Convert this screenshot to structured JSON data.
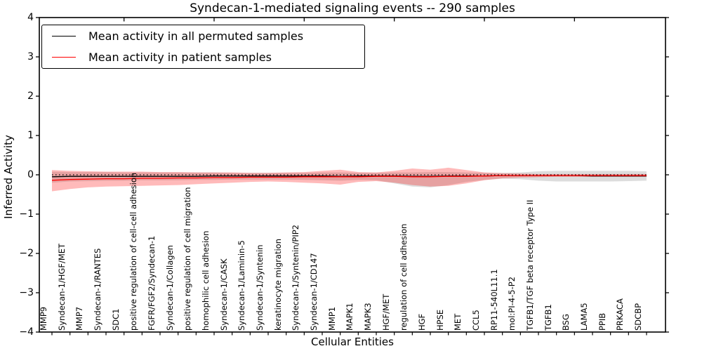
{
  "title": "Syndecan-1-mediated signaling events -- 290 samples",
  "axes": {
    "ylabel": "Inferred Activity",
    "xlabel": "Cellular Entities",
    "yticks": [
      4,
      3,
      2,
      1,
      0,
      -1,
      -2,
      -3,
      -4
    ],
    "top_major_tick_category_indices": [
      4,
      9,
      14,
      19,
      24,
      29
    ]
  },
  "legend": {
    "entries": [
      {
        "label": "Mean activity in all permuted samples",
        "color": "#000000"
      },
      {
        "label": "Mean activity in patient samples",
        "color": "#ff0000"
      }
    ],
    "position": "upper-left"
  },
  "colors": {
    "permuted_line": "#000000",
    "patient_line": "#ff0000",
    "permuted_band": "#787878",
    "permuted_band_alpha": 0.25,
    "patient_band": "#ff0000",
    "patient_band_alpha": 0.27,
    "zero_line": "#000000"
  },
  "chart_data": {
    "type": "line",
    "title": "Syndecan-1-mediated signaling events -- 290 samples",
    "xlabel": "Cellular Entities",
    "ylabel": "Inferred Activity",
    "ylim": [
      -4,
      4
    ],
    "grid": false,
    "legend_position": "upper left",
    "x_tick_rotation": 90,
    "zero_line": {
      "y": 0,
      "style": "dotted"
    },
    "categories": [
      "MMP9",
      "Syndecan-1/HGF/MET",
      "MMP7",
      "Syndecan-1/RANTES",
      "SDC1",
      "positive regulation of cell-cell adhesion",
      "FGFR/FGF2/Syndecan-1",
      "Syndecan-1/Collagen",
      "positive regulation of cell migration",
      "homophilic cell adhesion",
      "Syndecan-1/CASK",
      "Syndecan-1/Laminin-5",
      "Syndecan-1/Syntenin",
      "keratinocyte migration",
      "Syndecan-1/Syntenin/PIP2",
      "Syndecan-1/CD147",
      "MMP1",
      "MAPK1",
      "MAPK3",
      "HGF/MET",
      "regulation of cell adhesion",
      "HGF",
      "HPSE",
      "MET",
      "CCL5",
      "RP11-540L11.1",
      "mol:PI-4-5-P2",
      "TGFB1/TGF beta receptor Type II",
      "TGFB1",
      "BSG",
      "LAMA5",
      "PPIB",
      "PRKACA",
      "SDCBP"
    ],
    "series": [
      {
        "name": "Mean activity in all permuted samples",
        "color": "#000000",
        "values": [
          -0.05,
          -0.04,
          -0.04,
          -0.04,
          -0.04,
          -0.04,
          -0.04,
          -0.04,
          -0.04,
          -0.03,
          -0.03,
          -0.03,
          -0.03,
          -0.03,
          -0.03,
          -0.03,
          -0.04,
          -0.03,
          -0.03,
          -0.03,
          -0.04,
          -0.04,
          -0.03,
          -0.03,
          -0.03,
          -0.02,
          -0.02,
          -0.02,
          -0.02,
          -0.02,
          -0.03,
          -0.03,
          -0.03,
          -0.03
        ],
        "band_upper": [
          0.08,
          0.07,
          0.07,
          0.07,
          0.06,
          0.06,
          0.06,
          0.06,
          0.06,
          0.06,
          0.05,
          0.05,
          0.05,
          0.05,
          0.05,
          0.06,
          0.06,
          0.05,
          0.05,
          0.06,
          0.06,
          0.07,
          0.07,
          0.06,
          0.05,
          0.05,
          0.06,
          0.09,
          0.1,
          0.1,
          0.1,
          0.1,
          0.1,
          0.09
        ],
        "band_lower": [
          -0.2,
          -0.17,
          -0.16,
          -0.15,
          -0.15,
          -0.14,
          -0.14,
          -0.14,
          -0.13,
          -0.13,
          -0.12,
          -0.12,
          -0.12,
          -0.12,
          -0.13,
          -0.14,
          -0.15,
          -0.13,
          -0.14,
          -0.22,
          -0.3,
          -0.32,
          -0.26,
          -0.18,
          -0.13,
          -0.1,
          -0.11,
          -0.15,
          -0.17,
          -0.17,
          -0.17,
          -0.17,
          -0.16,
          -0.15
        ]
      },
      {
        "name": "Mean activity in patient samples",
        "color": "#ff0000",
        "values": [
          -0.14,
          -0.12,
          -0.11,
          -0.1,
          -0.1,
          -0.09,
          -0.09,
          -0.08,
          -0.08,
          -0.07,
          -0.07,
          -0.06,
          -0.06,
          -0.06,
          -0.05,
          -0.05,
          -0.05,
          -0.05,
          -0.04,
          -0.04,
          -0.05,
          -0.05,
          -0.04,
          -0.04,
          -0.03,
          -0.02,
          -0.02,
          -0.02,
          -0.02,
          -0.02,
          -0.02,
          -0.02,
          -0.02,
          -0.02
        ],
        "band_upper": [
          0.12,
          0.1,
          0.09,
          0.08,
          0.08,
          0.08,
          0.07,
          0.07,
          0.06,
          0.06,
          0.06,
          0.05,
          0.05,
          0.06,
          0.07,
          0.1,
          0.13,
          0.07,
          0.06,
          0.1,
          0.16,
          0.13,
          0.18,
          0.12,
          0.06,
          0.04,
          0.03,
          0.02,
          0.02,
          0.02,
          0.02,
          0.02,
          0.02,
          0.02
        ],
        "band_lower": [
          -0.42,
          -0.36,
          -0.32,
          -0.3,
          -0.29,
          -0.28,
          -0.27,
          -0.26,
          -0.24,
          -0.22,
          -0.2,
          -0.18,
          -0.17,
          -0.18,
          -0.2,
          -0.22,
          -0.25,
          -0.18,
          -0.16,
          -0.2,
          -0.26,
          -0.3,
          -0.28,
          -0.22,
          -0.14,
          -0.09,
          -0.07,
          -0.06,
          -0.05,
          -0.05,
          -0.05,
          -0.05,
          -0.05,
          -0.05
        ]
      }
    ]
  }
}
